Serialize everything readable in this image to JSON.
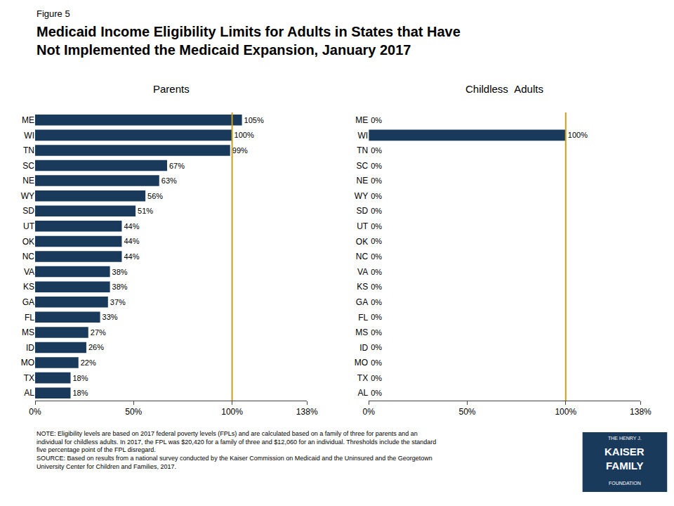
{
  "figure_label": "Figure 5",
  "title": "Medicaid Income Eligibility Limits for Adults in States that Have\nNot Implemented the Medicaid Expansion, January 2017",
  "note": "NOTE: Eligibility levels are based on 2017 federal poverty levels (FPLs) and are calculated based on a family of three for parents and an\nindividual for childless adults. In 2017, the FPL was $20,420 for a family of three and $12,060 for an individual. Thresholds include the standard\nfive percentage point of the FPL disregard.\nSOURCE: Based on results from a national survey conducted by the Kaiser Commission on Medicaid and the Uninsured and the Georgetown\nUniversity Center for Children and Families, 2017.",
  "logo": {
    "text": [
      "THE HENRY J.",
      "KAISER",
      "FAMILY",
      "FOUNDATION"
    ],
    "color": "#1a3a5c"
  },
  "chart_data": [
    {
      "type": "bar",
      "orientation": "horizontal",
      "title": "Parents",
      "categories": [
        "ME",
        "WI",
        "TN",
        "SC",
        "NE",
        "WY",
        "SD",
        "UT",
        "OK",
        "NC",
        "VA",
        "KS",
        "GA",
        "FL",
        "MS",
        "ID",
        "MO",
        "TX",
        "AL"
      ],
      "values": [
        105,
        100,
        99,
        67,
        63,
        56,
        51,
        44,
        44,
        44,
        38,
        38,
        37,
        33,
        27,
        26,
        22,
        18,
        18
      ],
      "value_labels": [
        "105%",
        "100%",
        "99%",
        "67%",
        "63%",
        "56%",
        "51%",
        "44%",
        "44%",
        "44%",
        "38%",
        "38%",
        "37%",
        "33%",
        "27%",
        "26%",
        "22%",
        "18%",
        "18%"
      ],
      "data_labels": true,
      "color": "#1a3a5c",
      "xlim": [
        0,
        138
      ],
      "xticks": [
        {
          "value": 0,
          "label": "0%"
        },
        {
          "value": 50,
          "label": "50%"
        },
        {
          "value": 100,
          "label": "100%"
        },
        {
          "value": 138,
          "label": "138%"
        }
      ],
      "reference_line": {
        "x": 100,
        "color": "#c8a020"
      },
      "grid": false
    },
    {
      "type": "bar",
      "orientation": "horizontal",
      "title": "Childless  Adults",
      "categories": [
        "ME",
        "WI",
        "TN",
        "SC",
        "NE",
        "WY",
        "SD",
        "UT",
        "OK",
        "NC",
        "VA",
        "KS",
        "GA",
        "FL",
        "MS",
        "ID",
        "MO",
        "TX",
        "AL"
      ],
      "values": [
        0,
        100,
        0,
        0,
        0,
        0,
        0,
        0,
        0,
        0,
        0,
        0,
        0,
        0,
        0,
        0,
        0,
        0,
        0
      ],
      "value_labels": [
        "0%",
        "100%",
        "0%",
        "0%",
        "0%",
        "0%",
        "0%",
        "0%",
        "0%",
        "0%",
        "0%",
        "0%",
        "0%",
        "0%",
        "0%",
        "0%",
        "0%",
        "0%",
        "0%"
      ],
      "data_labels": true,
      "color": "#1a3a5c",
      "xlim": [
        0,
        138
      ],
      "xticks": [
        {
          "value": 0,
          "label": "0%"
        },
        {
          "value": 50,
          "label": "50%"
        },
        {
          "value": 100,
          "label": "100%"
        },
        {
          "value": 138,
          "label": "138%"
        }
      ],
      "reference_line": {
        "x": 100,
        "color": "#c8a020"
      },
      "grid": false
    }
  ]
}
